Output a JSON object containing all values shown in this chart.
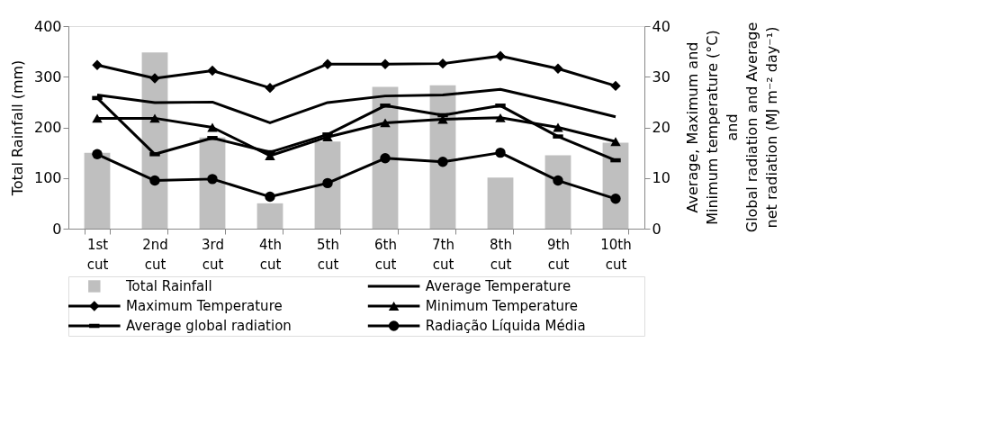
{
  "chart_data": {
    "type": "bar",
    "categories": [
      "1st cut",
      "2nd cut",
      "3rd cut",
      "4th cut",
      "5th cut",
      "6th cut",
      "7th cut",
      "8th cut",
      "9th cut",
      "10th cut"
    ],
    "ylabel": "Total Rainfall  (mm)",
    "y2label": "Average, Maximum and\nMinimum temperature (°C)\nand\nGlobal radiation and Average\nnet radiation (MJ m⁻² day⁻¹)",
    "ylim": [
      0,
      400
    ],
    "yticks": [
      0,
      100,
      200,
      300,
      400
    ],
    "y2lim": [
      0,
      40
    ],
    "y2ticks": [
      0,
      10,
      20,
      30,
      40
    ],
    "grid": false,
    "legend": "bottom",
    "series": [
      {
        "name": "Total Rainfall",
        "type": "bar",
        "color": "#bfbfbf",
        "values": [
          150,
          348,
          180,
          50,
          172,
          280,
          283,
          101,
          145,
          170
        ]
      },
      {
        "name": "Average Temperature",
        "type": "line",
        "axis": "y2",
        "marker": "none",
        "color": "#000000",
        "values": [
          26.4,
          24.9,
          25.0,
          20.9,
          24.9,
          26.2,
          26.4,
          27.5,
          24.9,
          22.1
        ]
      },
      {
        "name": "Maximum Temperature",
        "type": "line",
        "axis": "y2",
        "marker": "diamond",
        "color": "#000000",
        "values": [
          32.3,
          29.7,
          31.2,
          27.8,
          32.5,
          32.5,
          32.6,
          34.1,
          31.6,
          28.2
        ]
      },
      {
        "name": "Minimum Temperature",
        "type": "line",
        "axis": "y2",
        "marker": "triangle",
        "color": "#000000",
        "values": [
          21.8,
          21.8,
          20.0,
          14.4,
          18.1,
          20.9,
          21.6,
          21.9,
          20.0,
          17.2
        ]
      },
      {
        "name": "Average global radiation",
        "type": "line",
        "axis": "y2",
        "marker": "square",
        "color": "#000000",
        "values": [
          25.8,
          14.7,
          17.9,
          15.1,
          18.6,
          24.3,
          22.4,
          24.3,
          18.2,
          13.5
        ]
      },
      {
        "name": "Radiação Líquida Média",
        "type": "line",
        "axis": "y2",
        "marker": "circle",
        "color": "#000000",
        "values": [
          14.7,
          9.5,
          9.8,
          6.3,
          9.0,
          13.9,
          13.2,
          15.0,
          9.5,
          5.9
        ]
      }
    ]
  }
}
